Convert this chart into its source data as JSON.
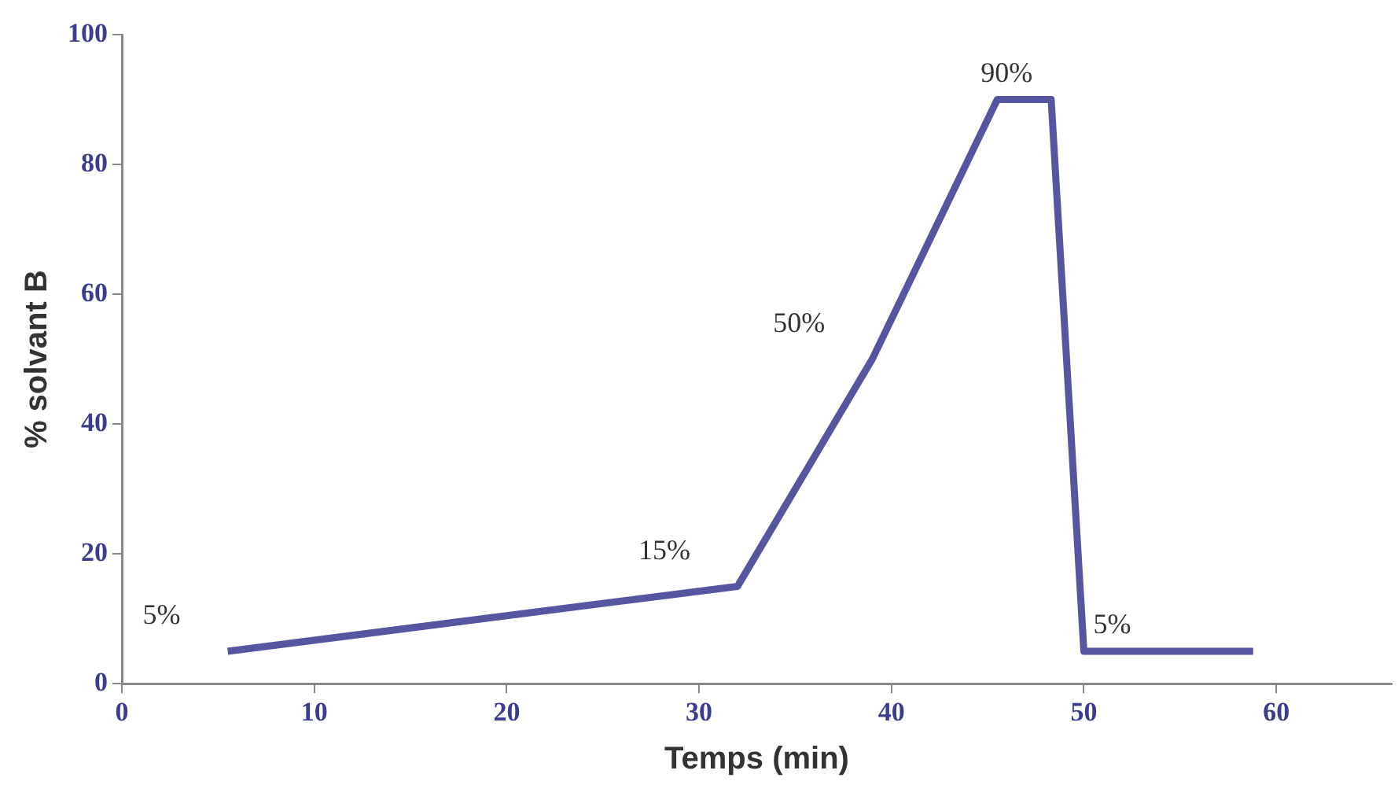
{
  "chart_data": {
    "type": "line",
    "xlabel": "Temps (min)",
    "ylabel": "% solvant B",
    "x": [
      5.5,
      32,
      39,
      45.5,
      48.3,
      50,
      58.8
    ],
    "series": [
      {
        "color": "#5555a0",
        "values": [
          5,
          15,
          50,
          90,
          90,
          5,
          5
        ],
        "value_labels": [
          "5%",
          "15%",
          "50%",
          "90%",
          null,
          "5%",
          null
        ]
      }
    ],
    "xlim": [
      0,
      66
    ],
    "xticks": [
      0,
      10,
      20,
      30,
      40,
      50,
      60
    ],
    "ylim": [
      0,
      100
    ],
    "yticks": [
      0,
      20,
      40,
      60,
      80,
      100
    ],
    "grid": false,
    "legend": false,
    "marker": "none",
    "line_style": "solid"
  }
}
